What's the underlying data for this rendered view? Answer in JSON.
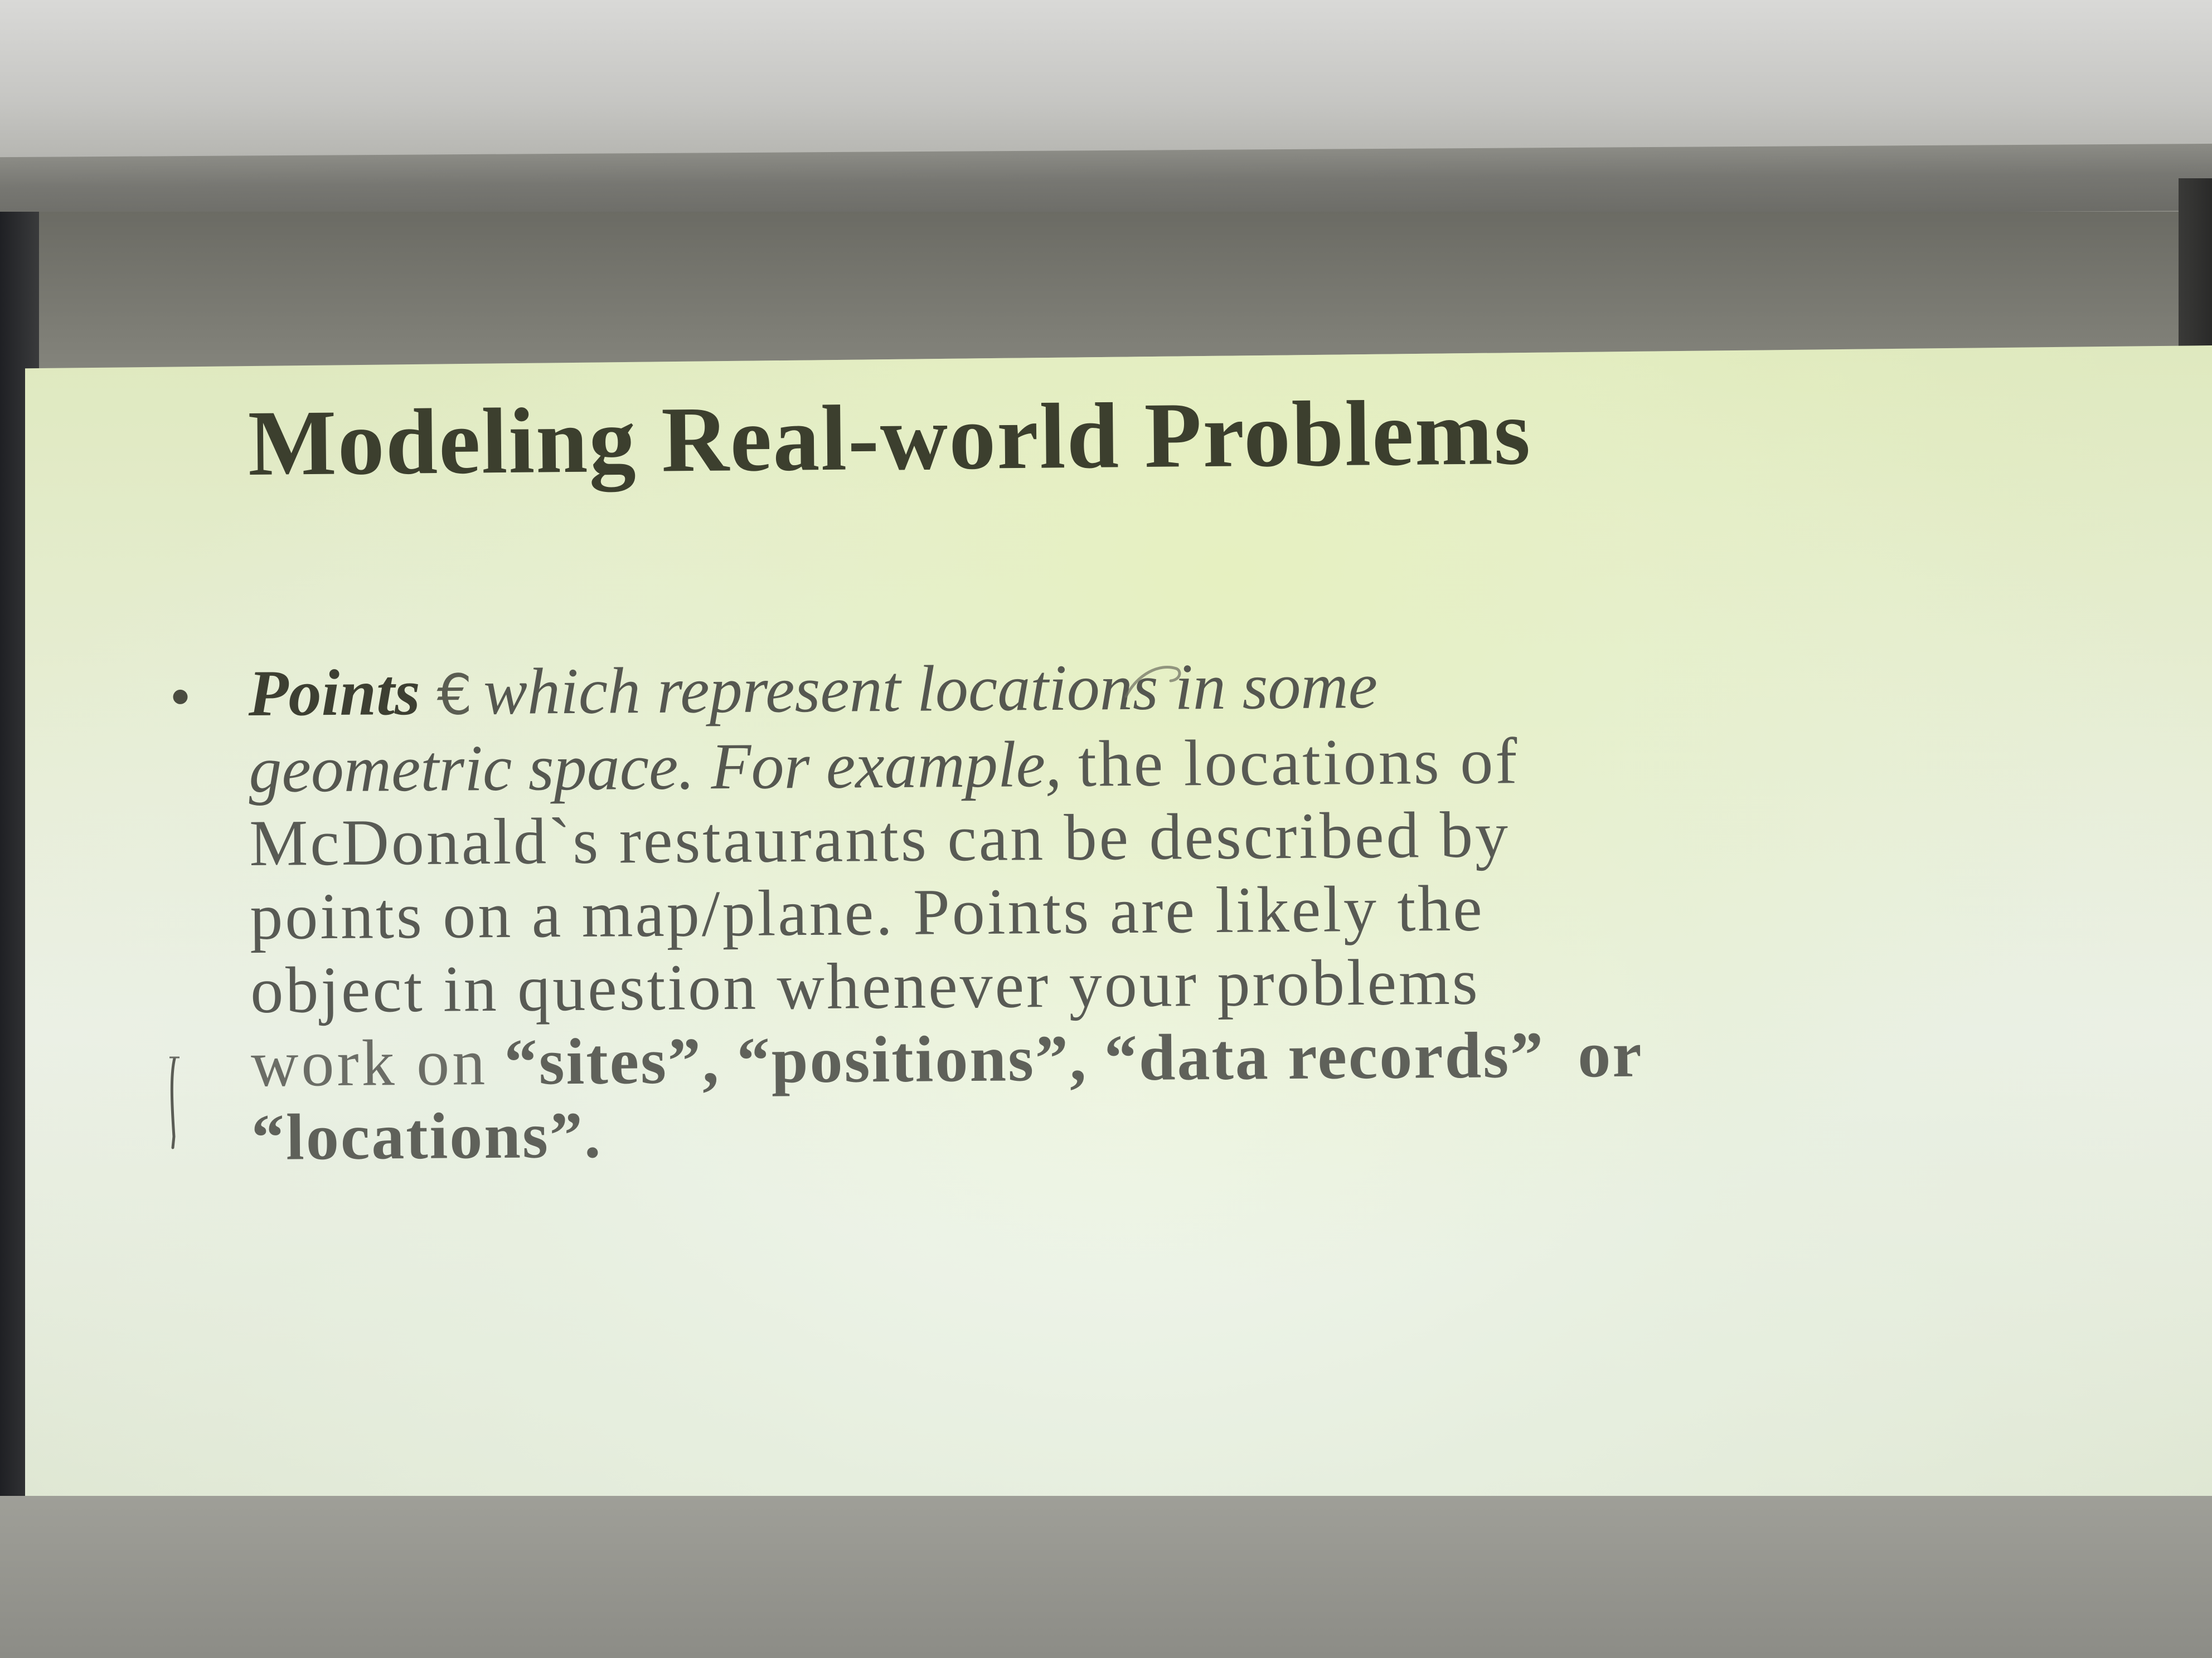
{
  "slide": {
    "title": "Modeling Real-world Problems",
    "bullet": {
      "term": "Points",
      "handwritten_mark": "€",
      "line1_italic": "which represent locations in some",
      "line2_italic": "geometric space. For example,",
      "line2_rest": "the locations of",
      "line3": "McDonald`s restaurants can be described by",
      "line4": "points on a map/plane. Points are likely the",
      "line5": "object in question whenever your problems",
      "line6_start": "work on",
      "q_sites": "“sites”,",
      "q_positions": "“positions”,",
      "q_data_records": "“data records”",
      "line6_end": "or",
      "q_locations": "“locations”."
    }
  }
}
